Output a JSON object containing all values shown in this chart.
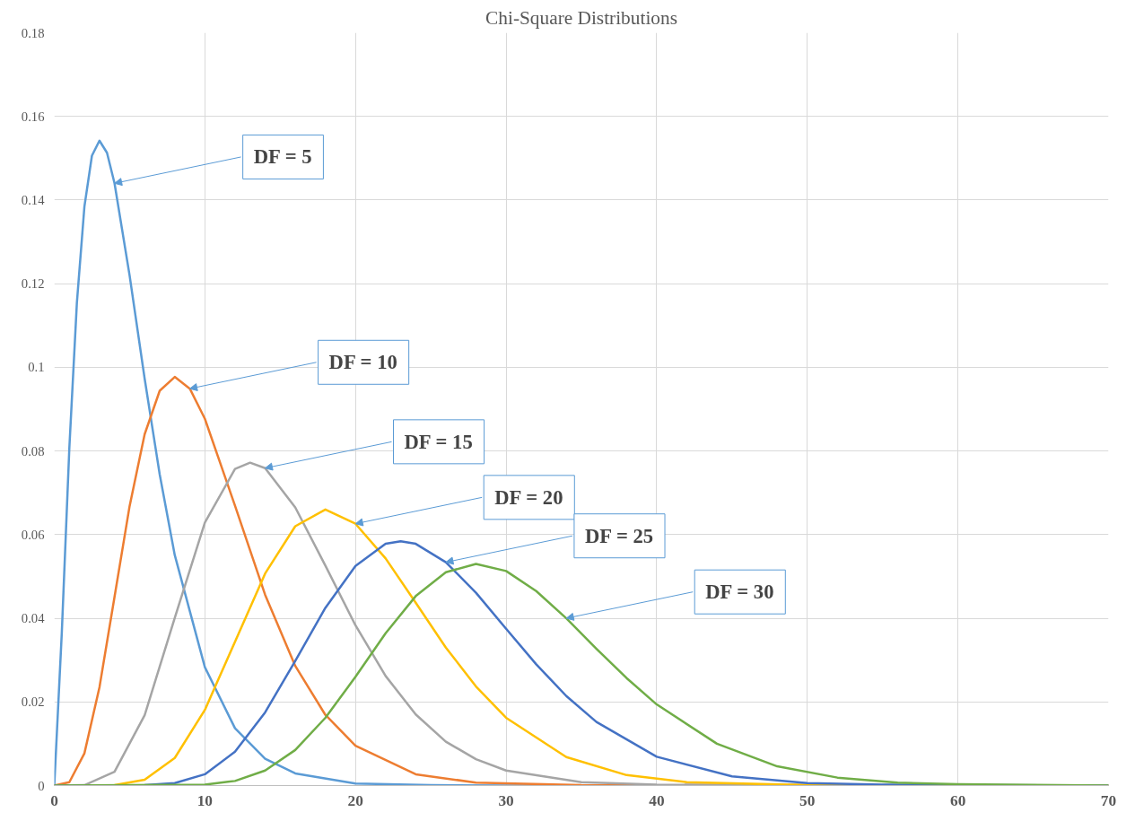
{
  "chart_data": {
    "type": "line",
    "title": "Chi-Square Distributions",
    "xlim": [
      0,
      70
    ],
    "xticks": [
      0,
      10,
      20,
      30,
      40,
      50,
      60,
      70
    ],
    "ylim": [
      0,
      0.18
    ],
    "yticks": [
      0,
      0.02,
      0.04,
      0.06,
      0.08,
      0.1,
      0.12,
      0.14,
      0.16,
      0.18
    ],
    "grid": true,
    "marker": "none",
    "line_style": "solid",
    "series": [
      {
        "color": "#5b9bd5",
        "x": [
          0,
          0.5,
          1,
          1.5,
          2,
          2.5,
          3,
          3.5,
          4,
          5,
          6,
          7,
          8,
          10,
          12,
          14,
          16,
          20,
          25,
          30,
          70
        ],
        "values": [
          0,
          0.0366,
          0.0807,
          0.1154,
          0.1384,
          0.1506,
          0.1542,
          0.1513,
          0.144,
          0.122,
          0.0973,
          0.0744,
          0.0551,
          0.0283,
          0.0137,
          0.0064,
          0.0029,
          0.0005,
          0.0001,
          0,
          0
        ]
      },
      {
        "color": "#ed7d31",
        "x": [
          0,
          1,
          2,
          3,
          4,
          5,
          6,
          7,
          8,
          9,
          10,
          12,
          14,
          16,
          18,
          20,
          24,
          28,
          35,
          70
        ],
        "values": [
          0,
          0.0008,
          0.0077,
          0.0235,
          0.0451,
          0.0668,
          0.084,
          0.0944,
          0.0977,
          0.0949,
          0.0877,
          0.0669,
          0.0456,
          0.0286,
          0.0169,
          0.0095,
          0.0027,
          0.0007,
          0.0001,
          0
        ]
      },
      {
        "color": "#a5a5a5",
        "x": [
          0,
          2,
          4,
          6,
          8,
          10,
          12,
          13,
          14,
          16,
          18,
          20,
          22,
          24,
          26,
          28,
          30,
          35,
          40,
          70
        ],
        "values": [
          0,
          0.0001,
          0.0033,
          0.0168,
          0.0401,
          0.0629,
          0.0757,
          0.0772,
          0.0759,
          0.0665,
          0.0526,
          0.0383,
          0.0262,
          0.017,
          0.0105,
          0.0063,
          0.0036,
          0.0008,
          0.0002,
          0
        ]
      },
      {
        "color": "#ffc000",
        "x": [
          0,
          4,
          6,
          8,
          10,
          12,
          14,
          16,
          18,
          20,
          22,
          24,
          26,
          28,
          30,
          34,
          38,
          42,
          50,
          70
        ],
        "values": [
          0,
          0.0001,
          0.0014,
          0.0066,
          0.0181,
          0.0344,
          0.0507,
          0.062,
          0.066,
          0.0626,
          0.0543,
          0.0437,
          0.033,
          0.0237,
          0.0162,
          0.0068,
          0.0025,
          0.0008,
          0.0001,
          0
        ]
      },
      {
        "color": "#4472c4",
        "x": [
          0,
          6,
          8,
          10,
          12,
          14,
          16,
          18,
          20,
          22,
          23,
          24,
          26,
          28,
          30,
          32,
          34,
          36,
          40,
          45,
          50,
          55,
          70
        ],
        "values": [
          0,
          0.0001,
          0.0006,
          0.0027,
          0.0081,
          0.0175,
          0.0298,
          0.0425,
          0.0525,
          0.0578,
          0.0584,
          0.0578,
          0.0534,
          0.0461,
          0.0375,
          0.029,
          0.0214,
          0.0152,
          0.0069,
          0.0022,
          0.0006,
          0.0002,
          0
        ]
      },
      {
        "color": "#70ad47",
        "x": [
          0,
          10,
          12,
          14,
          16,
          18,
          20,
          22,
          24,
          26,
          28,
          30,
          32,
          34,
          36,
          38,
          40,
          44,
          48,
          52,
          56,
          60,
          70
        ],
        "values": [
          0,
          0.0002,
          0.0011,
          0.0036,
          0.0085,
          0.0162,
          0.026,
          0.0364,
          0.0453,
          0.051,
          0.053,
          0.0513,
          0.0465,
          0.04,
          0.0327,
          0.0257,
          0.0194,
          0.01,
          0.0046,
          0.0019,
          0.0007,
          0.0003,
          0
        ]
      }
    ],
    "annotations": [
      {
        "text": "DF = 5",
        "x": 4,
        "y": 0.144
      },
      {
        "text": "DF = 10",
        "x": 9,
        "y": 0.0949
      },
      {
        "text": "DF = 15",
        "x": 14,
        "y": 0.0759
      },
      {
        "text": "DF = 20",
        "x": 20,
        "y": 0.0626
      },
      {
        "text": "DF = 25",
        "x": 26,
        "y": 0.0534
      },
      {
        "text": "DF = 30",
        "x": 34,
        "y": 0.04
      }
    ]
  }
}
